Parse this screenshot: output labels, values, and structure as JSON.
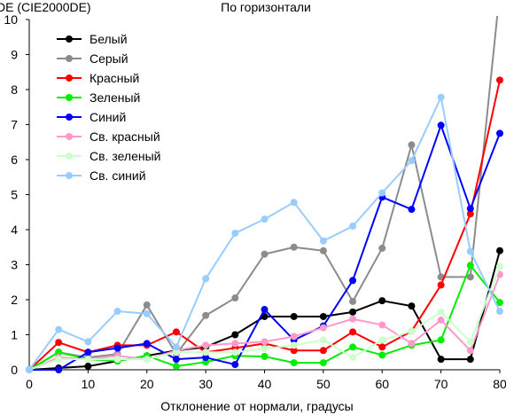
{
  "chart_data": {
    "type": "line",
    "title": "По горизонтали",
    "ylabel": "DE (CIE2000DE)",
    "xlabel": "Отклонение от нормали, градусы",
    "xlim": [
      0,
      80
    ],
    "ylim": [
      0,
      10
    ],
    "x_ticks": [
      0,
      10,
      20,
      30,
      40,
      50,
      60,
      70,
      80
    ],
    "y_ticks": [
      0,
      1,
      2,
      3,
      4,
      5,
      6,
      7,
      8,
      9,
      10
    ],
    "grid": false,
    "legend_position": "top-left",
    "x": [
      0,
      5,
      10,
      15,
      20,
      25,
      30,
      35,
      40,
      45,
      50,
      55,
      60,
      65,
      70,
      75,
      80
    ],
    "series": [
      {
        "name": "Белый",
        "color": "#000000",
        "values": [
          0,
          0.05,
          0.1,
          0.25,
          0.4,
          0.55,
          0.65,
          1.0,
          1.52,
          1.52,
          1.52,
          1.65,
          1.97,
          1.82,
          0.3,
          0.3,
          3.4
        ]
      },
      {
        "name": "Серый",
        "color": "#8c8c8c",
        "values": [
          0,
          0.5,
          0.35,
          0.45,
          1.85,
          0.45,
          1.55,
          2.05,
          3.3,
          3.5,
          3.4,
          1.95,
          3.47,
          6.42,
          2.65,
          2.65,
          10.8
        ]
      },
      {
        "name": "Красный",
        "color": "#ff0000",
        "values": [
          0,
          0.78,
          0.5,
          0.7,
          0.7,
          1.08,
          0.5,
          0.62,
          0.75,
          0.55,
          0.55,
          1.08,
          0.65,
          1.1,
          2.42,
          4.45,
          8.27
        ]
      },
      {
        "name": "Зеленый",
        "color": "#00ee00",
        "values": [
          0,
          0.5,
          0.3,
          0.25,
          0.4,
          0.1,
          0.22,
          0.4,
          0.38,
          0.2,
          0.2,
          0.65,
          0.42,
          0.7,
          0.85,
          2.98,
          1.92
        ]
      },
      {
        "name": "Синий",
        "color": "#0000ff",
        "values": [
          0,
          0,
          0.5,
          0.62,
          0.75,
          0.3,
          0.35,
          0.15,
          1.72,
          0.85,
          1.25,
          2.55,
          4.93,
          4.58,
          6.98,
          4.6,
          6.75
        ]
      },
      {
        "name": "Св. красный",
        "color": "#ff99cc",
        "values": [
          0,
          0.35,
          0.3,
          0.4,
          0.3,
          0.55,
          0.7,
          0.75,
          0.8,
          0.95,
          1.2,
          1.45,
          1.28,
          0.75,
          1.42,
          0.55,
          2.72
        ]
      },
      {
        "name": "Св. зеленый",
        "color": "#ccffcc",
        "values": [
          0,
          0.3,
          0.3,
          0.3,
          0.3,
          0.5,
          0.5,
          0.5,
          0.6,
          0.7,
          0.85,
          0.35,
          0.85,
          1.1,
          1.65,
          0.8,
          2.95
        ]
      },
      {
        "name": "Св. синий",
        "color": "#99ccff",
        "values": [
          0,
          1.15,
          0.8,
          1.67,
          1.6,
          0.65,
          2.6,
          3.9,
          4.3,
          4.78,
          3.68,
          4.1,
          5.05,
          5.97,
          7.78,
          3.38,
          1.67
        ]
      }
    ]
  }
}
